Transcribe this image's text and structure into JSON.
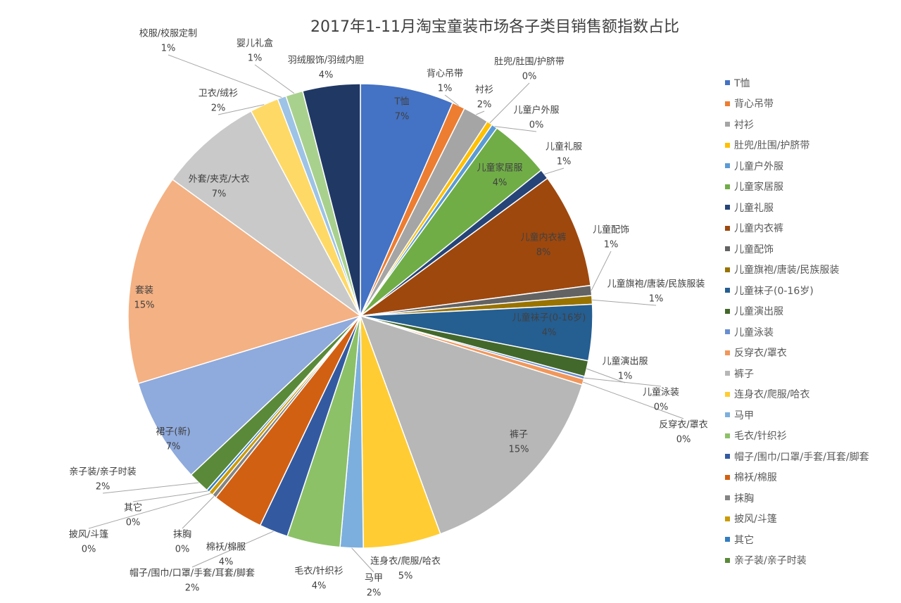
{
  "chart_data": {
    "type": "pie",
    "title": "2017年1-11月淘宝童装市场各子类目销售额指数占比",
    "legend_position": "right",
    "slices": [
      {
        "name": "T恤",
        "value": 6.5,
        "label": "7%",
        "color": "#4472C4"
      },
      {
        "name": "背心吊带",
        "value": 0.9,
        "label": "1%",
        "color": "#ED7D31"
      },
      {
        "name": "衬衫",
        "value": 1.8,
        "label": "2%",
        "color": "#A5A5A5"
      },
      {
        "name": "肚兜/肚围/护脐带",
        "value": 0.4,
        "label": "0%",
        "color": "#FFC000"
      },
      {
        "name": "儿童户外服",
        "value": 0.4,
        "label": "0%",
        "color": "#5B9BD5"
      },
      {
        "name": "儿童家居服",
        "value": 4.2,
        "label": "4%",
        "color": "#70AD47"
      },
      {
        "name": "儿童礼服",
        "value": 0.7,
        "label": "1%",
        "color": "#264478"
      },
      {
        "name": "儿童内衣裤",
        "value": 8.0,
        "label": "8%",
        "color": "#9E480E"
      },
      {
        "name": "儿童配饰",
        "value": 0.7,
        "label": "1%",
        "color": "#636363"
      },
      {
        "name": "儿童旗袍/唐装/民族服装",
        "value": 0.6,
        "label": "1%",
        "color": "#997300"
      },
      {
        "name": "儿童袜子(0-16岁)",
        "value": 3.9,
        "label": "4%",
        "color": "#255E91"
      },
      {
        "name": "儿童演出服",
        "value": 1.1,
        "label": "1%",
        "color": "#43682B"
      },
      {
        "name": "儿童泳装",
        "value": 0.2,
        "label": "0%",
        "color": "#698ED0"
      },
      {
        "name": "反穿衣/罩衣",
        "value": 0.4,
        "label": "0%",
        "color": "#F1975A"
      },
      {
        "name": "裤子",
        "value": 14.6,
        "label": "15%",
        "color": "#B7B7B7"
      },
      {
        "name": "连身衣/爬服/哈衣",
        "value": 5.4,
        "label": "5%",
        "color": "#FFCD33"
      },
      {
        "name": "马甲",
        "value": 1.6,
        "label": "2%",
        "color": "#7CAFDD"
      },
      {
        "name": "毛衣/针织衫",
        "value": 3.7,
        "label": "4%",
        "color": "#8CC168"
      },
      {
        "name": "帽子/围巾/口罩/手套/耳套/脚套",
        "value": 2.0,
        "label": "2%",
        "color": "#335AA1"
      },
      {
        "name": "棉袄/棉服",
        "value": 3.6,
        "label": "4%",
        "color": "#D26012"
      },
      {
        "name": "抹胸",
        "value": 0.3,
        "label": "0%",
        "color": "#848484"
      },
      {
        "name": "披风/斗篷",
        "value": 0.3,
        "label": "0%",
        "color": "#CC9A00"
      },
      {
        "name": "其它",
        "value": 0.2,
        "label": "0%",
        "color": "#327DC2"
      },
      {
        "name": "亲子装/亲子时装",
        "value": 1.5,
        "label": "2%",
        "color": "#5A8A39"
      },
      {
        "name": "裙子(新)",
        "value": 7.3,
        "label": "7%",
        "color": "#8FAADC"
      },
      {
        "name": "套装",
        "value": 14.7,
        "label": "15%",
        "color": "#F4B183"
      },
      {
        "name": "外套/夹克/大衣",
        "value": 7.2,
        "label": "7%",
        "color": "#C9C9C9"
      },
      {
        "name": "卫衣/绒衫",
        "value": 2.0,
        "label": "2%",
        "color": "#FFD966"
      },
      {
        "name": "校服/校服定制",
        "value": 0.6,
        "label": "1%",
        "color": "#9DC3E6"
      },
      {
        "name": "婴儿礼盒",
        "value": 1.2,
        "label": "1%",
        "color": "#A9D18E"
      },
      {
        "name": "羽绒服饰/羽绒内胆",
        "value": 4.0,
        "label": "4%",
        "color": "#203864"
      }
    ],
    "legend_visible_count": 24
  }
}
